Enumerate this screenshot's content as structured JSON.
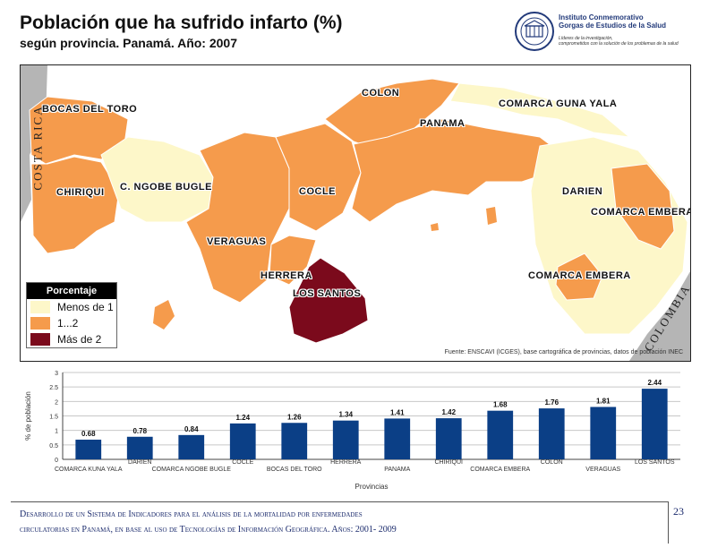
{
  "header": {
    "title": "Población que ha sufrido infarto (%)",
    "subtitle": "según provincia. Panamá. Año: 2007"
  },
  "logo": {
    "name_line1": "Instituto Conmemorativo",
    "name_line2": "Gorgas de Estudios de la Salud",
    "tagline_line1": "Líderes de la investigación,",
    "tagline_line2": "comprometidos con la solución de los problemas de la salud"
  },
  "map": {
    "countries": {
      "left": "COSTA RICA",
      "right": "COLOMBIA"
    },
    "provinces": {
      "bocas": "BOCAS DEL TORO",
      "chiriqui": "CHIRIQUI",
      "ngobe": "C. NGOBE BUGLE",
      "veraguas": "VERAGUAS",
      "cocle": "COCLE",
      "herrera": "HERRERA",
      "los_santos": "LOS SANTOS",
      "colon": "COLON",
      "panama": "PANAMA",
      "guna": "COMARCA GUNA YALA",
      "darien": "DARIEN",
      "embera1": "COMARCA EMBERA",
      "embera2": "COMARCA EMBERA"
    },
    "source": "Fuente: ENSCAVI (ICGES), base cartográfica de provincias, datos de población INEC",
    "legend": {
      "title": "Porcentaje",
      "items": [
        {
          "label": "Menos de 1",
          "color": "#fdf7c9"
        },
        {
          "label": "1...2",
          "color": "#f59b4c"
        },
        {
          "label": "Más de 2",
          "color": "#7b0a1c"
        }
      ]
    }
  },
  "chart_data": {
    "type": "bar",
    "title": "",
    "xlabel": "Provincias",
    "ylabel": "% de población",
    "ylim": [
      0,
      3
    ],
    "yticks": [
      "0",
      "0.5",
      "1",
      "1.5",
      "2",
      "2.5",
      "3"
    ],
    "grid": true,
    "bar_color": "#0b3f86",
    "categories": [
      "COMARCA KUNA YALA",
      "DARIEN",
      "COMARCA NGOBE BUGLE",
      "COCLE",
      "BOCAS DEL TORO",
      "HERRERA",
      "PANAMA",
      "CHIRIQUI",
      "COMARCA EMBERA",
      "COLON",
      "VERAGUAS",
      "LOS SANTOS"
    ],
    "values": [
      0.68,
      0.78,
      0.84,
      1.24,
      1.26,
      1.34,
      1.41,
      1.42,
      1.68,
      1.76,
      1.81,
      2.44
    ]
  },
  "footer": {
    "line1": "Desarrollo de un Sistema de Indicadores para el análisis de la mortalidad por enfermedades",
    "line2": "circulatorias en Panamá, en base al uso de Tecnologías de Información Geográfica. Años: 2001- 2009",
    "page_number": "23"
  }
}
